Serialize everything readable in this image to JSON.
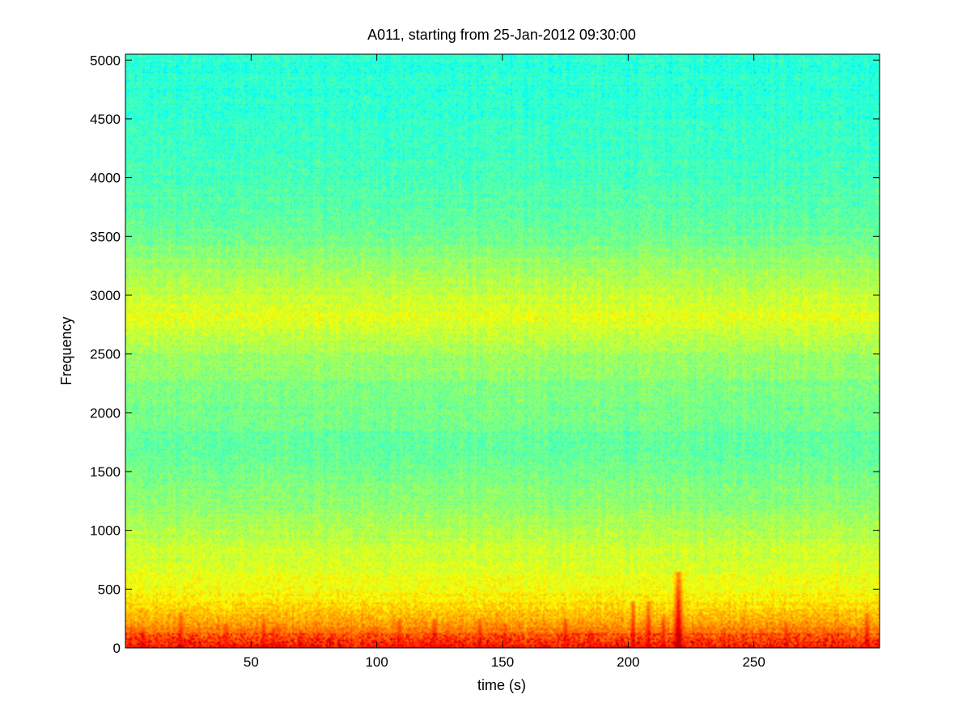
{
  "chart_data": {
    "type": "heatmap",
    "title": "A011, starting from 25-Jan-2012 09:30:00",
    "xlabel": "time (s)",
    "ylabel": "Frequency",
    "xlim": [
      0,
      300
    ],
    "ylim": [
      0,
      5050
    ],
    "x_ticks": [
      50,
      100,
      150,
      200,
      250
    ],
    "y_ticks": [
      0,
      500,
      1000,
      1500,
      2000,
      2500,
      3000,
      3500,
      4000,
      4500,
      5000
    ],
    "colormap": "jet",
    "grid": false,
    "legend": "none",
    "intensity_profile": [
      {
        "frequency": 0,
        "level": 0.85
      },
      {
        "frequency": 100,
        "level": 0.78
      },
      {
        "frequency": 300,
        "level": 0.68
      },
      {
        "frequency": 500,
        "level": 0.62
      },
      {
        "frequency": 800,
        "level": 0.58
      },
      {
        "frequency": 1200,
        "level": 0.52
      },
      {
        "frequency": 1700,
        "level": 0.47
      },
      {
        "frequency": 2200,
        "level": 0.5
      },
      {
        "frequency": 2500,
        "level": 0.53
      },
      {
        "frequency": 2800,
        "level": 0.6
      },
      {
        "frequency": 3100,
        "level": 0.55
      },
      {
        "frequency": 3500,
        "level": 0.48
      },
      {
        "frequency": 4000,
        "level": 0.44
      },
      {
        "frequency": 5050,
        "level": 0.41
      }
    ],
    "transient_events": [
      {
        "time": 7,
        "max_frequency": 150,
        "level": 0.9
      },
      {
        "time": 22,
        "max_frequency": 300,
        "level": 0.88
      },
      {
        "time": 40,
        "max_frequency": 200,
        "level": 0.86
      },
      {
        "time": 55,
        "max_frequency": 250,
        "level": 0.86
      },
      {
        "time": 59,
        "max_frequency": 180,
        "level": 0.86
      },
      {
        "time": 70,
        "max_frequency": 150,
        "level": 0.85
      },
      {
        "time": 109,
        "max_frequency": 250,
        "level": 0.86
      },
      {
        "time": 123,
        "max_frequency": 250,
        "level": 0.88
      },
      {
        "time": 128,
        "max_frequency": 150,
        "level": 0.85
      },
      {
        "time": 141,
        "max_frequency": 250,
        "level": 0.87
      },
      {
        "time": 151,
        "max_frequency": 200,
        "level": 0.86
      },
      {
        "time": 175,
        "max_frequency": 250,
        "level": 0.87
      },
      {
        "time": 185,
        "max_frequency": 150,
        "level": 0.85
      },
      {
        "time": 202,
        "max_frequency": 400,
        "level": 0.9
      },
      {
        "time": 208,
        "max_frequency": 400,
        "level": 0.9
      },
      {
        "time": 214,
        "max_frequency": 250,
        "level": 0.88
      },
      {
        "time": 220,
        "max_frequency": 650,
        "level": 0.96
      },
      {
        "time": 238,
        "max_frequency": 150,
        "level": 0.85
      },
      {
        "time": 263,
        "max_frequency": 200,
        "level": 0.86
      },
      {
        "time": 295,
        "max_frequency": 300,
        "level": 0.88
      }
    ]
  }
}
